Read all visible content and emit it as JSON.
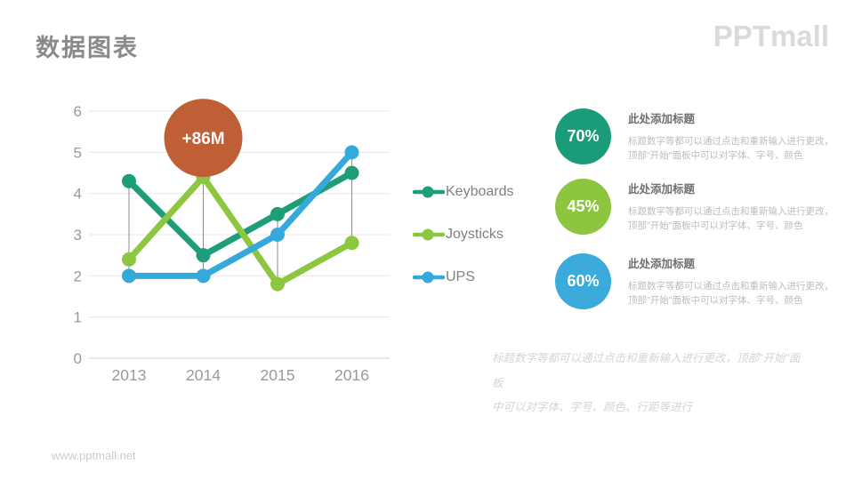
{
  "slide": {
    "title": "数据图表",
    "brand": "PPTmall",
    "footer_url": "www.pptmall.net"
  },
  "chart_data": {
    "type": "line",
    "title": "",
    "xlabel": "",
    "ylabel": "",
    "categories": [
      "2013",
      "2014",
      "2015",
      "2016"
    ],
    "series": [
      {
        "name": "Keyboards",
        "color": "#1E9E78",
        "values": [
          4.3,
          2.5,
          3.5,
          4.5
        ]
      },
      {
        "name": "Joysticks",
        "color": "#8DC63F",
        "values": [
          2.4,
          4.4,
          1.8,
          2.8
        ]
      },
      {
        "name": "UPS",
        "color": "#35A9DC",
        "values": [
          2.0,
          2.0,
          3.0,
          5.0
        ]
      }
    ],
    "ylim": [
      0,
      6
    ],
    "y_ticks": [
      0,
      1,
      2,
      3,
      4,
      5,
      6
    ],
    "grid": true,
    "drop_lines": true,
    "legend_position": "right",
    "annotation": {
      "label": "+86M",
      "color": "#C05E35",
      "category": "2014",
      "value": 5.35
    }
  },
  "stats": [
    {
      "value": "70%",
      "color": "#1B9C78",
      "title": "此处添加标题",
      "body": "标题数字等都可以通过点击和重新输入进行更改，顶部\"开始\"面板中可以对字体、字号、颜色"
    },
    {
      "value": "45%",
      "color": "#8CC63F",
      "title": "此处添加标题",
      "body": "标题数字等都可以通过点击和重新输入进行更改，顶部\"开始\"面板中可以对字体、字号、颜色"
    },
    {
      "value": "60%",
      "color": "#3BABDB",
      "title": "此处添加标题",
      "body": "标题数字等都可以通过点击和重新输入进行更改，顶部\"开始\"面板中可以对字体、字号、颜色"
    }
  ],
  "footer_note": {
    "line1": "标题数字等都可以通过点击和重新输入进行更改，顶部\"开始\"面板",
    "line2": "中可以对字体、字号、颜色、行距等进行"
  }
}
